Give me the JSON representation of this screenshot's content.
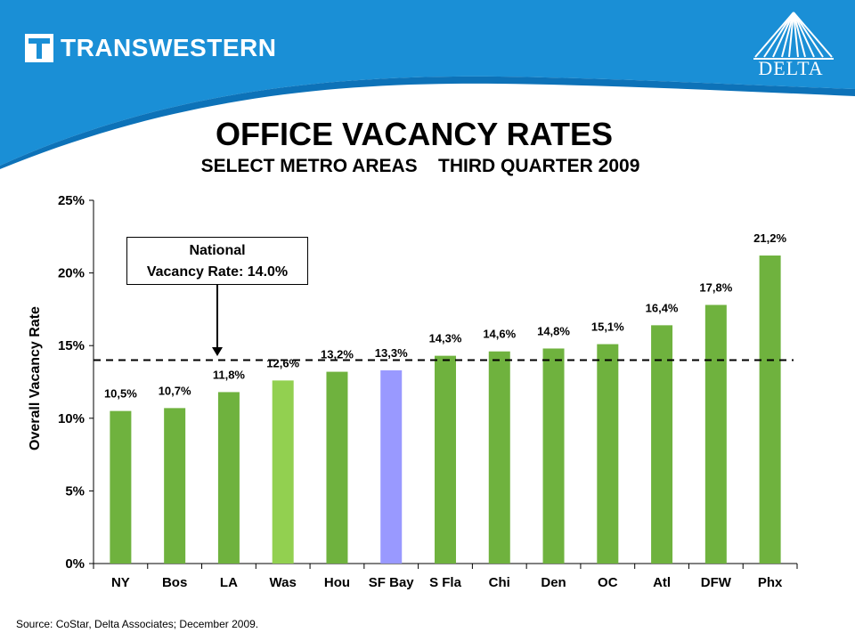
{
  "header": {
    "brand_name": "TRANSWESTERN",
    "partner_name": "DELTA",
    "colors": {
      "header_blue": "#1a8fd6",
      "header_dark": "#0d72b8"
    }
  },
  "titles": {
    "main": "OFFICE VACANCY RATES",
    "sub": "SELECT METRO AREAS    THIRD QUARTER 2009"
  },
  "callout": {
    "line1": "National",
    "line2": "Vacancy Rate: 14.0%"
  },
  "source": "Source: CoStar, Delta Associates; December 2009.",
  "chart_data": {
    "type": "bar",
    "title": "OFFICE VACANCY RATES",
    "subtitle": "SELECT METRO AREAS    THIRD QUARTER 2009",
    "xlabel": "",
    "ylabel": "Overall Vacancy Rate",
    "ylim": [
      0,
      25
    ],
    "yticks": [
      "0%",
      "5%",
      "10%",
      "15%",
      "20%",
      "25%"
    ],
    "ytick_values": [
      0,
      5,
      10,
      15,
      20,
      25
    ],
    "categories": [
      "NY",
      "Bos",
      "LA",
      "Was",
      "Hou",
      "SF Bay",
      "S Fla",
      "Chi",
      "Den",
      "OC",
      "Atl",
      "DFW",
      "Phx"
    ],
    "values": [
      10.5,
      10.7,
      11.8,
      12.6,
      13.2,
      13.3,
      14.3,
      14.6,
      14.8,
      15.1,
      16.4,
      17.8,
      21.2
    ],
    "data_labels": [
      "10,5%",
      "10,7%",
      "11,8%",
      "12,6%",
      "13,2%",
      "13,3%",
      "14,3%",
      "14,6%",
      "14,8%",
      "15,1%",
      "16,4%",
      "17,8%",
      "21,2%"
    ],
    "reference_line": {
      "value": 14.0,
      "style": "dashed"
    },
    "colors": {
      "default": "#6fb23e",
      "highlight_light_green": "#92d050",
      "highlight_blue": "#9999ff",
      "per_bar": [
        "#6fb23e",
        "#6fb23e",
        "#6fb23e",
        "#92d050",
        "#6fb23e",
        "#9999ff",
        "#6fb23e",
        "#6fb23e",
        "#6fb23e",
        "#6fb23e",
        "#6fb23e",
        "#6fb23e",
        "#6fb23e"
      ]
    },
    "grid": false,
    "legend": "none"
  }
}
